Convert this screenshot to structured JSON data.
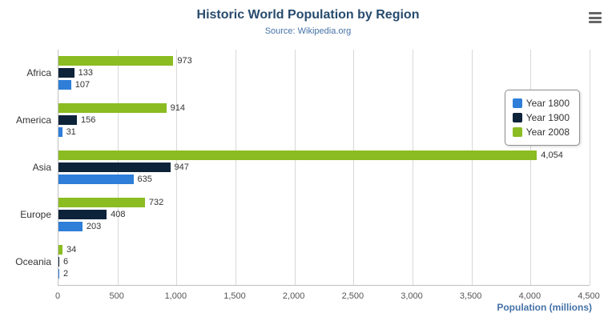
{
  "chart": {
    "title": "Historic World Population by Region",
    "subtitle": "Source: Wikipedia.org",
    "xlabel": "Population (millions)"
  },
  "menu": {
    "icon": "hamburger-context-menu"
  },
  "chart_data": {
    "type": "bar",
    "orientation": "horizontal",
    "title": "Historic World Population by Region",
    "subtitle": "Source: Wikipedia.org",
    "categories": [
      "Africa",
      "America",
      "Asia",
      "Europe",
      "Oceania"
    ],
    "series": [
      {
        "name": "Year 1800",
        "color": "#2f7ed8",
        "values": [
          107,
          31,
          635,
          203,
          2
        ]
      },
      {
        "name": "Year 1900",
        "color": "#0d233a",
        "values": [
          133,
          156,
          947,
          408,
          6
        ]
      },
      {
        "name": "Year 2008",
        "color": "#8bbc21",
        "values": [
          973,
          914,
          4054,
          732,
          34
        ]
      }
    ],
    "series_display_order_top_to_bottom": [
      "Year 2008",
      "Year 1900",
      "Year 1800"
    ],
    "xlabel": "Population (millions)",
    "xlim": [
      0,
      4500
    ],
    "xticks": [
      0,
      500,
      1000,
      1500,
      2000,
      2500,
      3000,
      3500,
      4000,
      4500
    ],
    "grid": true,
    "legend_position": "right"
  }
}
